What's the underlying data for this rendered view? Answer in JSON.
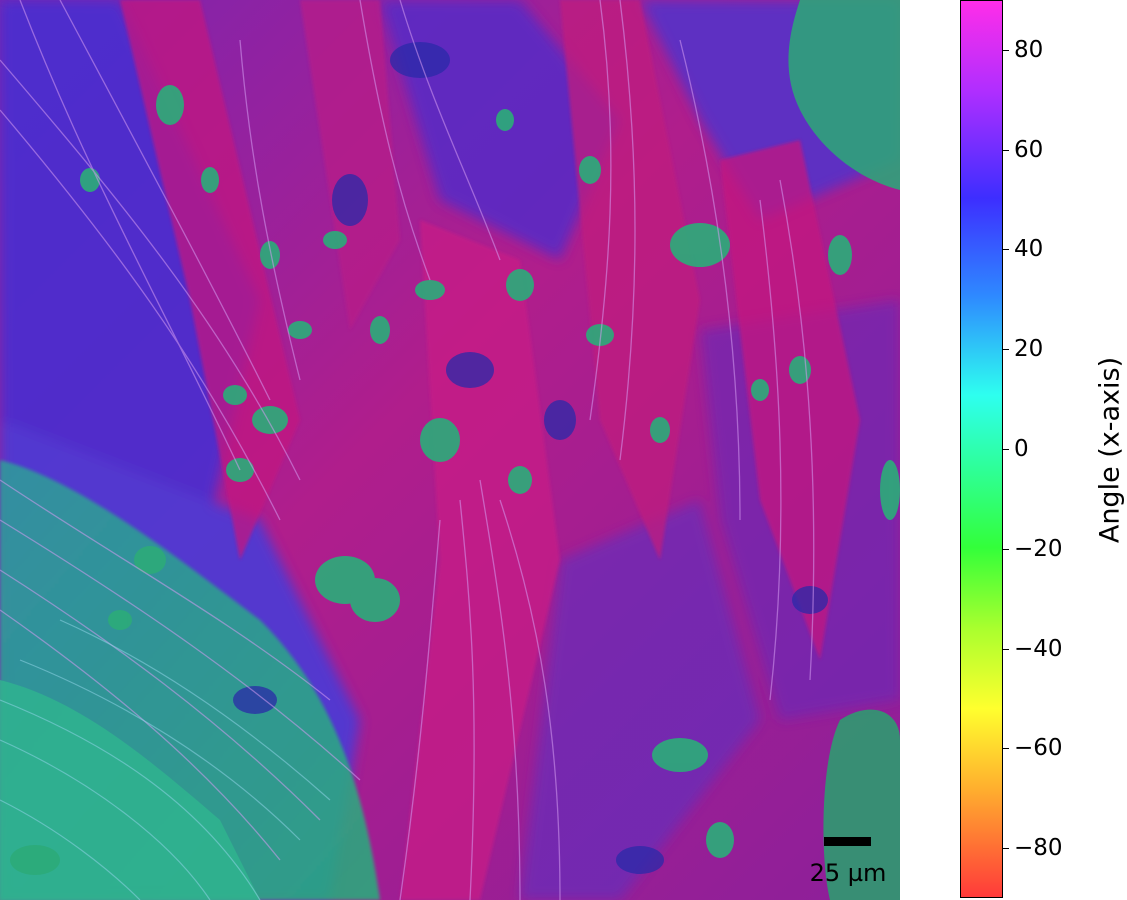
{
  "scale_bar": {
    "label": "25 µm"
  },
  "colorbar": {
    "label": "Angle (x-axis)",
    "range": [
      -90,
      90
    ],
    "ticks": [
      "80",
      "60",
      "40",
      "20",
      "0",
      "−20",
      "−40",
      "−60",
      "−80"
    ],
    "tick_values": [
      80,
      60,
      40,
      20,
      0,
      -20,
      -40,
      -60,
      -80
    ],
    "colormap": "hsv"
  },
  "colors": {
    "magenta": "#c2178a",
    "purple": "#6a22b8",
    "blue": "#3d3fd6",
    "teal": "#2aa88c",
    "green": "#33b36a"
  }
}
